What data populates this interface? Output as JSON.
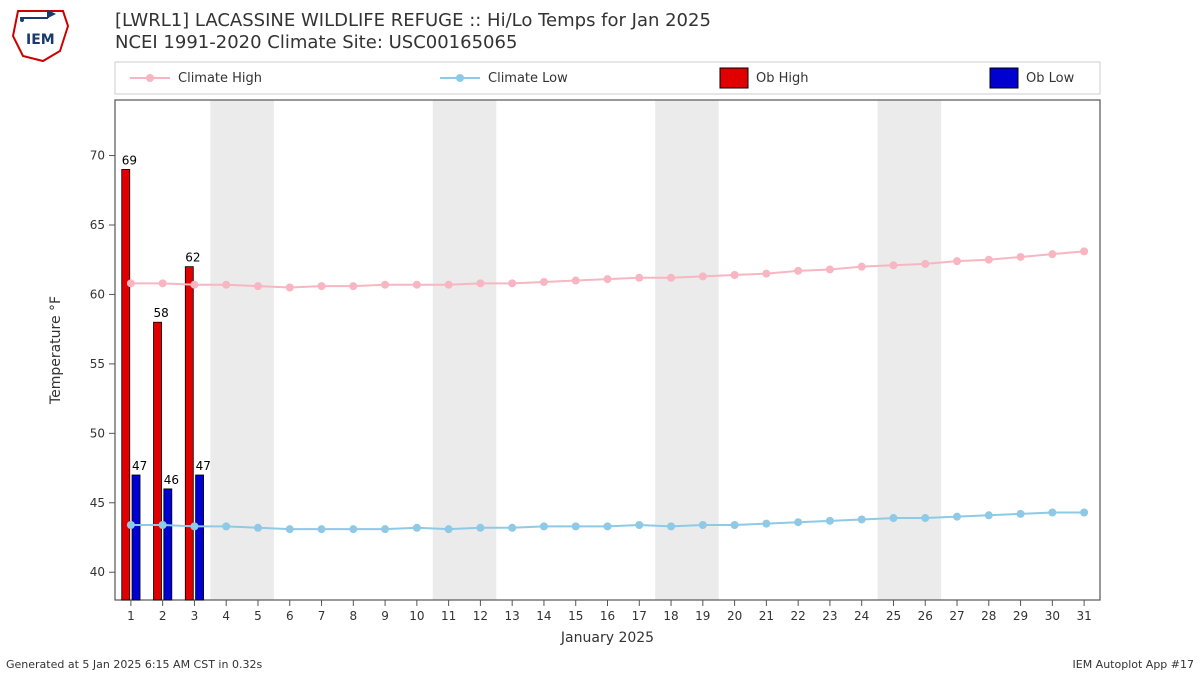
{
  "title_line1": "[LWRL1] LACASSINE WILDLIFE REFUGE :: Hi/Lo Temps for Jan 2025",
  "title_line2": "NCEI 1991-2020 Climate Site: USC00165065",
  "footer_left": "Generated at 5 Jan 2025 6:15 AM CST in 0.32s",
  "footer_right": "IEM Autoplot App #17",
  "ylabel": "Temperature °F",
  "xlabel": "January 2025",
  "legend": {
    "climate_high": "Climate High",
    "climate_low": "Climate Low",
    "ob_high": "Ob High",
    "ob_low": "Ob Low"
  },
  "colors": {
    "climate_high": "#f7b6c2",
    "climate_low": "#8ecae6",
    "ob_high": "#e00000",
    "ob_low": "#0000d0",
    "grid": "#cccccc",
    "axis": "#555555",
    "weekend_band": "#ebebeb",
    "bg": "#ffffff"
  },
  "y": {
    "min": 38,
    "max": 74,
    "ticks": [
      40,
      45,
      50,
      55,
      60,
      65,
      70
    ]
  },
  "x": {
    "days": 31
  },
  "weekend_bands": [
    [
      4,
      5
    ],
    [
      11,
      12
    ],
    [
      18,
      19
    ],
    [
      25,
      26
    ]
  ],
  "climate_high_series": [
    60.8,
    60.8,
    60.7,
    60.7,
    60.6,
    60.5,
    60.6,
    60.6,
    60.7,
    60.7,
    60.7,
    60.8,
    60.8,
    60.9,
    61.0,
    61.1,
    61.2,
    61.2,
    61.3,
    61.4,
    61.5,
    61.7,
    61.8,
    62.0,
    62.1,
    62.2,
    62.4,
    62.5,
    62.7,
    62.9,
    63.1
  ],
  "climate_low_series": [
    43.4,
    43.4,
    43.3,
    43.3,
    43.2,
    43.1,
    43.1,
    43.1,
    43.1,
    43.2,
    43.1,
    43.2,
    43.2,
    43.3,
    43.3,
    43.3,
    43.4,
    43.3,
    43.4,
    43.4,
    43.5,
    43.6,
    43.7,
    43.8,
    43.9,
    43.9,
    44.0,
    44.1,
    44.2,
    44.3,
    44.3
  ],
  "ob_high": [
    {
      "day": 1,
      "val": 69
    },
    {
      "day": 2,
      "val": 58
    },
    {
      "day": 3,
      "val": 62
    }
  ],
  "ob_low": [
    {
      "day": 1,
      "val": 47
    },
    {
      "day": 2,
      "val": 46
    },
    {
      "day": 3,
      "val": 47
    }
  ],
  "marker_radius": 4,
  "line_width": 2,
  "bar_half_width_days": 0.18
}
